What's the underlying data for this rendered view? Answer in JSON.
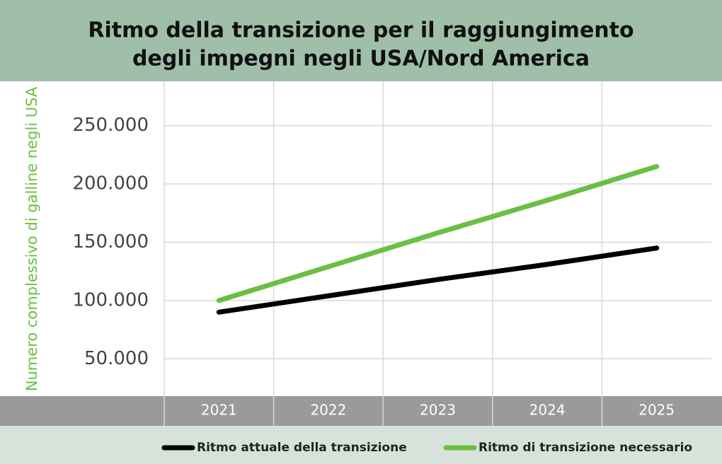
{
  "chart_data": {
    "type": "line",
    "title": [
      "Ritmo della transizione per il raggiungimento",
      "degli impegni negli USA/Nord America"
    ],
    "y_label": "Numero complessivo di galline negli USA",
    "categories": [
      "2021",
      "2022",
      "2023",
      "2024",
      "2025"
    ],
    "series": [
      {
        "name": "Ritmo attuale della transizione",
        "color": "#000000",
        "values": [
          90000,
          104000,
          118000,
          131000,
          145000
        ]
      },
      {
        "name": "Ritmo di transizione necessario",
        "color": "#6abf45",
        "values": [
          100000,
          129000,
          158000,
          186000,
          215000
        ]
      }
    ],
    "ylim": [
      18000,
      288000
    ],
    "yticks": [
      {
        "value": 50000,
        "label": "50.000"
      },
      {
        "value": 100000,
        "label": "100.000"
      },
      {
        "value": 150000,
        "label": "150.000"
      },
      {
        "value": 200000,
        "label": "200.000"
      },
      {
        "value": 250000,
        "label": "250.000"
      }
    ],
    "grid": true
  }
}
